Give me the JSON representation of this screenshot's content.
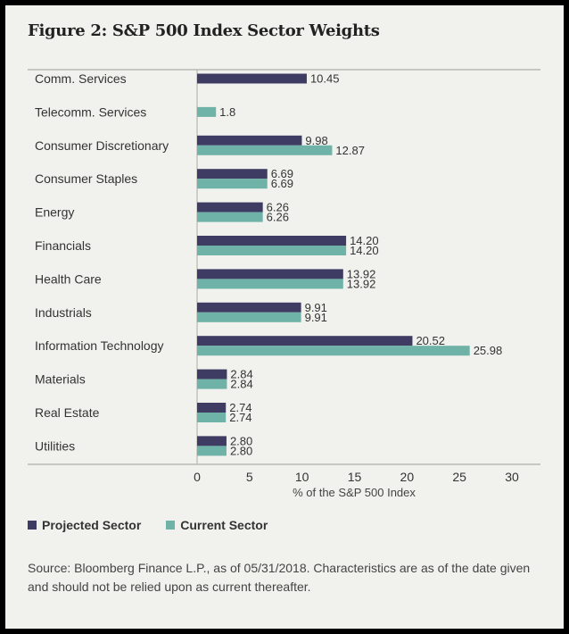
{
  "colors": {
    "projected": "#3e3c63",
    "current": "#6fb3a8",
    "background": "#f1f1ed",
    "frame": "#000000"
  },
  "chart_data": {
    "type": "bar",
    "orientation": "horizontal",
    "title": "Figure 2: S&P 500 Index Sector Weights",
    "xlabel": "% of the S&P 500 Index",
    "ylabel": "",
    "xlim": [
      0,
      30
    ],
    "xticks": [
      "0",
      "5",
      "10",
      "15",
      "20",
      "25",
      "30"
    ],
    "grid": false,
    "legend_position": "bottom-left",
    "categories": [
      "Comm. Services",
      "Telecomm. Services",
      "Consumer Discretionary",
      "Consumer Staples",
      "Energy",
      "Financials",
      "Health Care",
      "Industrials",
      "Information Technology",
      "Materials",
      "Real Estate",
      "Utilities"
    ],
    "series": [
      {
        "name": "Projected Sector",
        "values": [
          10.45,
          null,
          9.98,
          6.69,
          6.26,
          14.2,
          13.92,
          9.91,
          20.52,
          2.84,
          2.74,
          2.8
        ],
        "labels": [
          "10.45",
          "",
          "9.98",
          "6.69",
          "6.26",
          "14.20",
          "13.92",
          "9.91",
          "20.52",
          "2.84",
          "2.74",
          "2.80"
        ]
      },
      {
        "name": "Current Sector",
        "values": [
          null,
          1.8,
          12.87,
          6.69,
          6.26,
          14.2,
          13.92,
          9.91,
          25.98,
          2.84,
          2.74,
          2.8
        ],
        "labels": [
          "",
          "1.8",
          "12.87",
          "6.69",
          "6.26",
          "14.20",
          "13.92",
          "9.91",
          "25.98",
          "2.84",
          "2.74",
          "2.80"
        ]
      }
    ]
  },
  "legend": {
    "projected": "Projected Sector",
    "current": "Current Sector"
  },
  "source": "Source: Bloomberg Finance L.P., as of 05/31/2018. Characteristics are as of the date given and should not be relied upon as current thereafter."
}
